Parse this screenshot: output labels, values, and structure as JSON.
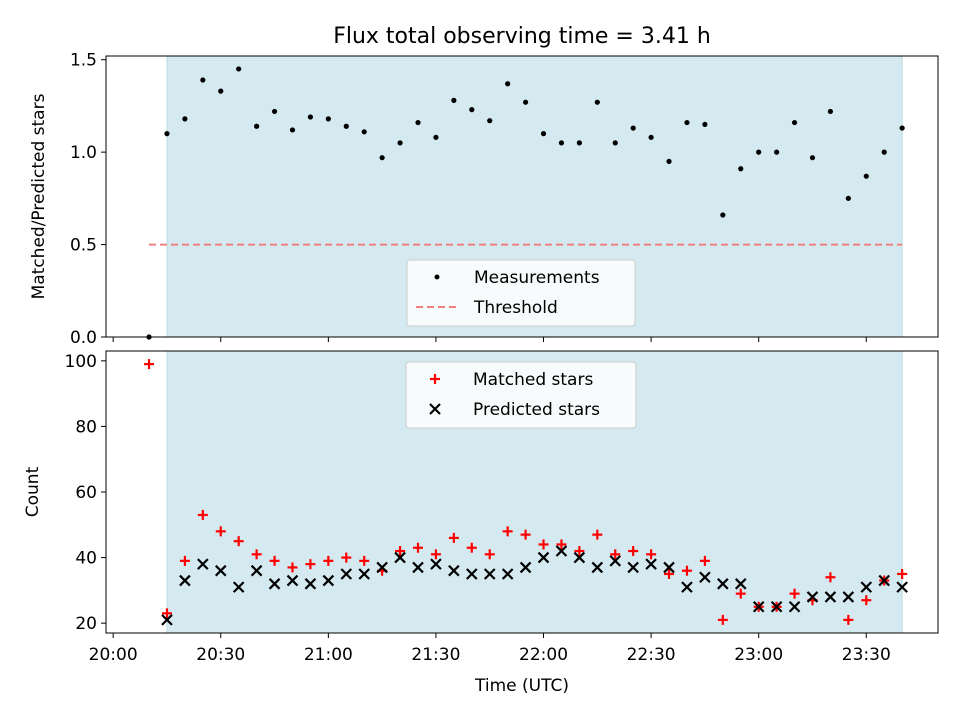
{
  "chart_data": [
    {
      "type": "scatter",
      "title": "Flux total observing time = 3.41 h",
      "ylabel": "Matched/Predicted stars",
      "xlabel": "",
      "ylim": [
        0,
        1.52
      ],
      "xlim": [
        "19:58",
        "23:50"
      ],
      "yticks": [
        "0.0",
        "0.5",
        "1.0",
        "1.5"
      ],
      "y_tick_values": [
        0,
        0.5,
        1.0,
        1.5
      ],
      "observing_window": [
        "20:15",
        "23:40"
      ],
      "threshold": {
        "y": 0.5,
        "from": "20:10",
        "to": "23:40"
      },
      "shade_color": "#d4eaf0",
      "threshold_color": "#f08080",
      "point_color": "#000000",
      "legend": {
        "position": "lower-center",
        "entries": [
          "Measurements",
          "Threshold"
        ]
      },
      "series": [
        {
          "name": "Measurements",
          "points": [
            [
              "20:10",
              0.0
            ],
            [
              "20:15",
              1.1
            ],
            [
              "20:20",
              1.18
            ],
            [
              "20:25",
              1.39
            ],
            [
              "20:30",
              1.33
            ],
            [
              "20:35",
              1.45
            ],
            [
              "20:40",
              1.14
            ],
            [
              "20:45",
              1.22
            ],
            [
              "20:50",
              1.12
            ],
            [
              "20:55",
              1.19
            ],
            [
              "21:00",
              1.18
            ],
            [
              "21:05",
              1.14
            ],
            [
              "21:10",
              1.11
            ],
            [
              "21:15",
              0.97
            ],
            [
              "21:20",
              1.05
            ],
            [
              "21:25",
              1.16
            ],
            [
              "21:30",
              1.08
            ],
            [
              "21:35",
              1.28
            ],
            [
              "21:40",
              1.23
            ],
            [
              "21:45",
              1.17
            ],
            [
              "21:50",
              1.37
            ],
            [
              "21:55",
              1.27
            ],
            [
              "22:00",
              1.1
            ],
            [
              "22:05",
              1.05
            ],
            [
              "22:10",
              1.05
            ],
            [
              "22:15",
              1.27
            ],
            [
              "22:20",
              1.05
            ],
            [
              "22:25",
              1.13
            ],
            [
              "22:30",
              1.08
            ],
            [
              "22:35",
              0.95
            ],
            [
              "22:40",
              1.16
            ],
            [
              "22:45",
              1.15
            ],
            [
              "22:50",
              0.66
            ],
            [
              "22:55",
              0.91
            ],
            [
              "23:00",
              1.0
            ],
            [
              "23:05",
              1.0
            ],
            [
              "23:10",
              1.16
            ],
            [
              "23:15",
              0.97
            ],
            [
              "23:20",
              1.22
            ],
            [
              "23:25",
              0.75
            ],
            [
              "23:30",
              0.87
            ],
            [
              "23:35",
              1.0
            ],
            [
              "23:40",
              1.13
            ]
          ]
        }
      ]
    },
    {
      "type": "scatter",
      "title": "",
      "ylabel": "Count",
      "xlabel": "Time (UTC)",
      "ylim": [
        17,
        103
      ],
      "xlim": [
        "19:58",
        "23:50"
      ],
      "yticks": [
        "20",
        "40",
        "60",
        "80",
        "100"
      ],
      "y_tick_values": [
        20,
        40,
        60,
        80,
        100
      ],
      "xticks": [
        "20:00",
        "20:30",
        "21:00",
        "21:30",
        "22:00",
        "22:30",
        "23:00",
        "23:30"
      ],
      "x_tick_values": [
        "20:00",
        "20:30",
        "21:00",
        "21:30",
        "22:00",
        "22:30",
        "23:00",
        "23:30"
      ],
      "observing_window": [
        "20:15",
        "23:40"
      ],
      "shade_color": "#d4eaf0",
      "legend": {
        "position": "upper-center",
        "entries": [
          "Matched stars",
          "Predicted stars"
        ]
      },
      "series": [
        {
          "name": "Matched stars",
          "marker": "plus",
          "color": "#ff0000",
          "points": [
            [
              "20:10",
              99
            ],
            [
              "20:15",
              23
            ],
            [
              "20:20",
              39
            ],
            [
              "20:25",
              53
            ],
            [
              "20:30",
              48
            ],
            [
              "20:35",
              45
            ],
            [
              "20:40",
              41
            ],
            [
              "20:45",
              39
            ],
            [
              "20:50",
              37
            ],
            [
              "20:55",
              38
            ],
            [
              "21:00",
              39
            ],
            [
              "21:05",
              40
            ],
            [
              "21:10",
              39
            ],
            [
              "21:15",
              36
            ],
            [
              "21:20",
              42
            ],
            [
              "21:25",
              43
            ],
            [
              "21:30",
              41
            ],
            [
              "21:35",
              46
            ],
            [
              "21:40",
              43
            ],
            [
              "21:45",
              41
            ],
            [
              "21:50",
              48
            ],
            [
              "21:55",
              47
            ],
            [
              "22:00",
              44
            ],
            [
              "22:05",
              44
            ],
            [
              "22:10",
              42
            ],
            [
              "22:15",
              47
            ],
            [
              "22:20",
              41
            ],
            [
              "22:25",
              42
            ],
            [
              "22:30",
              41
            ],
            [
              "22:35",
              35
            ],
            [
              "22:40",
              36
            ],
            [
              "22:45",
              39
            ],
            [
              "22:50",
              21
            ],
            [
              "22:55",
              29
            ],
            [
              "23:00",
              25
            ],
            [
              "23:05",
              25
            ],
            [
              "23:10",
              29
            ],
            [
              "23:15",
              27
            ],
            [
              "23:20",
              34
            ],
            [
              "23:25",
              21
            ],
            [
              "23:30",
              27
            ],
            [
              "23:35",
              33
            ],
            [
              "23:40",
              35
            ]
          ]
        },
        {
          "name": "Predicted stars",
          "marker": "x",
          "color": "#000000",
          "points": [
            [
              "20:15",
              21
            ],
            [
              "20:20",
              33
            ],
            [
              "20:25",
              38
            ],
            [
              "20:30",
              36
            ],
            [
              "20:35",
              31
            ],
            [
              "20:40",
              36
            ],
            [
              "20:45",
              32
            ],
            [
              "20:50",
              33
            ],
            [
              "20:55",
              32
            ],
            [
              "21:00",
              33
            ],
            [
              "21:05",
              35
            ],
            [
              "21:10",
              35
            ],
            [
              "21:15",
              37
            ],
            [
              "21:20",
              40
            ],
            [
              "21:25",
              37
            ],
            [
              "21:30",
              38
            ],
            [
              "21:35",
              36
            ],
            [
              "21:40",
              35
            ],
            [
              "21:45",
              35
            ],
            [
              "21:50",
              35
            ],
            [
              "21:55",
              37
            ],
            [
              "22:00",
              40
            ],
            [
              "22:05",
              42
            ],
            [
              "22:10",
              40
            ],
            [
              "22:15",
              37
            ],
            [
              "22:20",
              39
            ],
            [
              "22:25",
              37
            ],
            [
              "22:30",
              38
            ],
            [
              "22:35",
              37
            ],
            [
              "22:40",
              31
            ],
            [
              "22:45",
              34
            ],
            [
              "22:50",
              32
            ],
            [
              "22:55",
              32
            ],
            [
              "23:00",
              25
            ],
            [
              "23:05",
              25
            ],
            [
              "23:10",
              25
            ],
            [
              "23:15",
              28
            ],
            [
              "23:20",
              28
            ],
            [
              "23:25",
              28
            ],
            [
              "23:30",
              31
            ],
            [
              "23:35",
              33
            ],
            [
              "23:40",
              31
            ]
          ]
        }
      ]
    }
  ]
}
